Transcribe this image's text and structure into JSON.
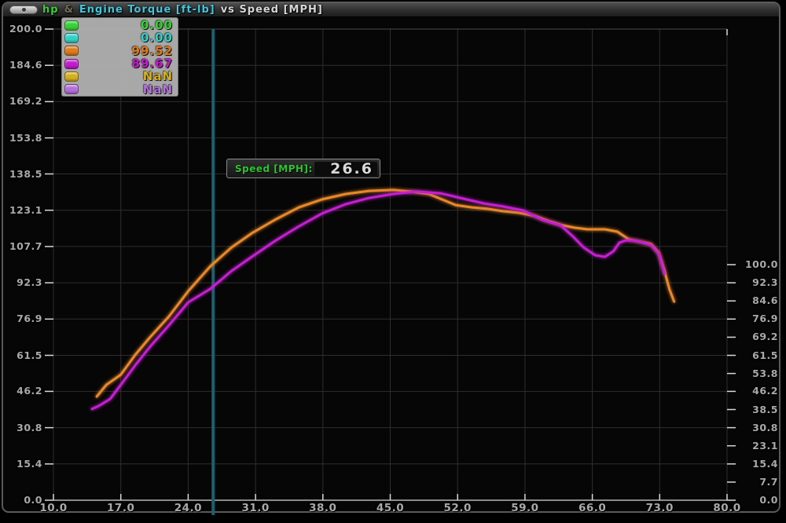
{
  "titlebar": {
    "parts": [
      {
        "text": "hp",
        "color": "#3ecb3e"
      },
      {
        "text": "&",
        "color": "#6e6e58"
      },
      {
        "text": "Engine Torque [ft-lb]",
        "color": "#43c6dc"
      },
      {
        "text": "vs Speed [MPH]",
        "color": "#d6d6d6"
      }
    ]
  },
  "legend": {
    "items": [
      {
        "name": "green-channel",
        "color": "#35d435",
        "value": "0.00"
      },
      {
        "name": "cyan-channel",
        "color": "#31d2c6",
        "value": "0.00"
      },
      {
        "name": "orange-channel",
        "color": "#e07b18",
        "value": "99.52"
      },
      {
        "name": "magenta-channel",
        "color": "#c519ce",
        "value": "89.67"
      },
      {
        "name": "yellow-channel",
        "color": "#d6b01c",
        "value": "NaN"
      },
      {
        "name": "purple-channel",
        "color": "#b46fdc",
        "value": "NaN"
      }
    ]
  },
  "cursor_tooltip": {
    "label": "Speed [MPH]:",
    "value": "26.6"
  },
  "cursor": {
    "mph": 26.6,
    "color": "#1a616f"
  },
  "chart_data": {
    "type": "line",
    "title": "hp & Engine Torque [ft-lb] vs Speed [MPH]",
    "xlabel": "Speed [MPH]",
    "ylabel_left": "hp",
    "ylabel_right": "Engine Torque [ft-lb]",
    "xlim": [
      10,
      80
    ],
    "ylim_left": [
      0,
      200
    ],
    "ylim_right": [
      0,
      100
    ],
    "grid": true,
    "legend_position": "top-left",
    "x_ticks": [
      10.0,
      17.0,
      24.0,
      31.0,
      38.0,
      45.0,
      52.0,
      59.0,
      66.0,
      73.0,
      80.0
    ],
    "left_ticks": [
      200.0,
      184.6,
      169.2,
      153.8,
      138.5,
      123.1,
      107.7,
      92.3,
      76.9,
      61.5,
      46.2,
      30.8,
      15.4,
      0.0
    ],
    "right_ticks": [
      100.0,
      92.3,
      84.6,
      76.9,
      69.2,
      61.5,
      53.8,
      46.2,
      38.5,
      30.8,
      23.1,
      15.4,
      7.7,
      0.0
    ],
    "series": [
      {
        "name": "orange-trace",
        "color": "#e8882a",
        "axis": "left",
        "value_at_cursor": 99.52,
        "x": [
          14.5,
          15.5,
          17.0,
          18.5,
          20.0,
          22.0,
          24.0,
          26.3,
          28.5,
          30.6,
          33.0,
          35.5,
          37.9,
          40.4,
          42.8,
          45.3,
          47.2,
          49.0,
          50.2,
          51.8,
          53.5,
          55.1,
          56.7,
          58.4,
          60.0,
          61.6,
          62.9,
          64.1,
          65.5,
          67.3,
          68.6,
          69.8,
          71.0,
          72.1,
          72.9,
          73.5,
          74.0,
          74.5
        ],
        "y": [
          44.0,
          49.0,
          53.3,
          61.7,
          69.0,
          78.0,
          88.7,
          99.3,
          107.3,
          113.3,
          119.0,
          124.3,
          127.7,
          130.0,
          131.3,
          131.7,
          131.0,
          130.0,
          128.0,
          125.3,
          124.3,
          123.7,
          122.7,
          122.0,
          120.7,
          118.3,
          116.7,
          115.7,
          115.0,
          115.0,
          114.0,
          110.7,
          109.7,
          108.7,
          105.0,
          97.3,
          89.7,
          84.3
        ]
      },
      {
        "name": "magenta-trace",
        "color": "#c41fd0",
        "axis": "left",
        "value_at_cursor": 89.67,
        "x": [
          14.0,
          14.7,
          15.9,
          17.0,
          18.5,
          20.0,
          22.0,
          24.0,
          26.3,
          28.5,
          30.6,
          33.0,
          35.4,
          37.9,
          40.4,
          42.8,
          45.3,
          47.7,
          50.2,
          52.6,
          54.7,
          56.7,
          58.8,
          60.8,
          62.7,
          63.9,
          65.1,
          66.3,
          67.3,
          68.2,
          68.8,
          69.5,
          70.3,
          71.0,
          72.1,
          72.9,
          73.3,
          73.5
        ],
        "y": [
          38.7,
          40.0,
          43.0,
          49.0,
          57.3,
          65.0,
          74.3,
          84.0,
          89.7,
          97.3,
          103.3,
          110.0,
          116.0,
          121.7,
          125.7,
          128.3,
          130.0,
          131.0,
          130.3,
          128.0,
          126.0,
          124.7,
          123.0,
          119.0,
          116.7,
          112.3,
          107.3,
          104.0,
          103.3,
          105.7,
          109.3,
          110.3,
          110.3,
          109.7,
          108.3,
          104.7,
          99.0,
          96.0
        ]
      }
    ]
  },
  "colors": {
    "grid": "#2e2e2e",
    "axis_line": "#8a8a8a",
    "top_line": "#4a4a4a",
    "tick": "#d8d8d8",
    "plot_bg": "#050505"
  }
}
